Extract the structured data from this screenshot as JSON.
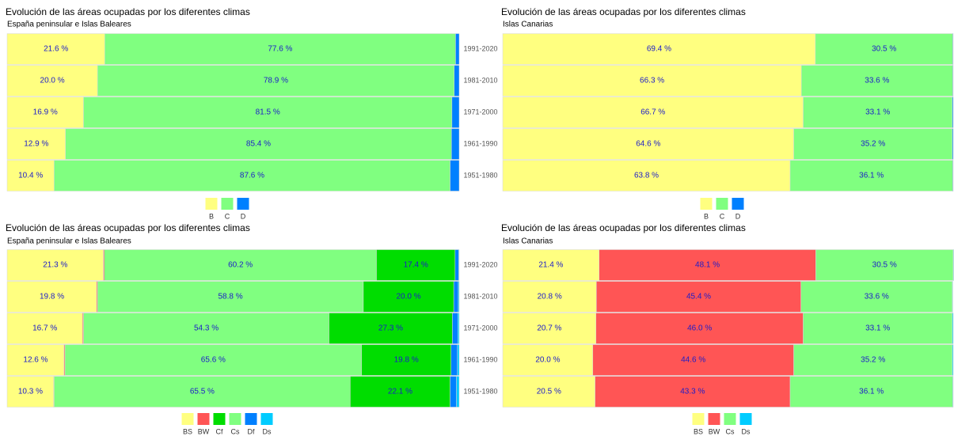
{
  "chart_data": [
    {
      "type": "bar",
      "orientation": "horizontal",
      "stacked": true,
      "title": "Evolución de las áreas ocupadas por los diferentes climas",
      "subtitle": "España peninsular e Islas Baleares",
      "categories": [
        "1991-2020",
        "1981-2010",
        "1971-2000",
        "1961-1990",
        "1951-1980"
      ],
      "xlim": [
        0,
        100
      ],
      "series": [
        {
          "name": "B",
          "color": "#ffff80",
          "values": [
            21.6,
            20.0,
            16.9,
            12.9,
            10.4
          ],
          "value_labels": [
            "21.6 %",
            "20.0 %",
            "16.9 %",
            "12.9 %",
            "10.4 %"
          ]
        },
        {
          "name": "C",
          "color": "#80ff80",
          "values": [
            77.6,
            78.9,
            81.5,
            85.4,
            87.6
          ],
          "value_labels": [
            "77.6 %",
            "78.9 %",
            "81.5 %",
            "85.4 %",
            "87.6 %"
          ]
        },
        {
          "name": "D",
          "color": "#0080ff",
          "values": [
            0.8,
            1.1,
            1.6,
            1.7,
            2.0
          ]
        }
      ]
    },
    {
      "type": "bar",
      "orientation": "horizontal",
      "stacked": true,
      "title": "Evolución de las áreas ocupadas por los diferentes climas",
      "subtitle": "Islas Canarias",
      "xlim": [
        0,
        100
      ],
      "series": [
        {
          "name": "B",
          "color": "#ffff80",
          "values": [
            69.4,
            66.3,
            66.7,
            64.6,
            63.8
          ],
          "value_labels": [
            "69.4 %",
            "66.3 %",
            "66.7 %",
            "64.6 %",
            "63.8 %"
          ]
        },
        {
          "name": "C",
          "color": "#80ff80",
          "values": [
            30.5,
            33.6,
            33.1,
            35.2,
            36.1
          ],
          "value_labels": [
            "30.5 %",
            "33.6 %",
            "33.1 %",
            "35.2 %",
            "36.1 %"
          ]
        },
        {
          "name": "D",
          "color": "#0080ff",
          "values": [
            0.1,
            0.1,
            0.2,
            0.2,
            0.1
          ]
        }
      ]
    },
    {
      "type": "bar",
      "orientation": "horizontal",
      "stacked": true,
      "title": "Evolución de las áreas ocupadas por los diferentes climas",
      "subtitle": "España peninsular e Islas Baleares",
      "categories": [
        "1991-2020",
        "1981-2010",
        "1971-2000",
        "1961-1990",
        "1951-1980"
      ],
      "xlim": [
        0,
        100
      ],
      "series": [
        {
          "name": "BS",
          "color": "#ffff80",
          "values": [
            21.3,
            19.8,
            16.7,
            12.6,
            10.3
          ],
          "value_labels": [
            "21.3 %",
            "19.8 %",
            "16.7 %",
            "12.6 %",
            "10.3 %"
          ]
        },
        {
          "name": "BW",
          "color": "#ff5555",
          "values": [
            0.2,
            0.2,
            0.2,
            0.2,
            0.1
          ]
        },
        {
          "name": "Cs",
          "color": "#80ff80",
          "values": [
            60.2,
            58.8,
            54.3,
            65.6,
            65.5
          ],
          "value_labels": [
            "60.2 %",
            "58.8 %",
            "54.3 %",
            "65.6 %",
            "65.5 %"
          ]
        },
        {
          "name": "Cf",
          "color": "#00dd00",
          "values": [
            17.4,
            20.0,
            27.3,
            19.8,
            22.1
          ],
          "value_labels": [
            "17.4 %",
            "20.0 %",
            "27.3 %",
            "19.8 %",
            "22.1 %"
          ]
        },
        {
          "name": "Df",
          "color": "#0080ff",
          "values": [
            0.8,
            1.0,
            1.2,
            1.4,
            1.4
          ]
        },
        {
          "name": "Ds",
          "color": "#00ccff",
          "values": [
            0.1,
            0.2,
            0.3,
            0.4,
            0.6
          ]
        }
      ]
    },
    {
      "type": "bar",
      "orientation": "horizontal",
      "stacked": true,
      "title": "Evolución de las áreas ocupadas por los diferentes climas",
      "subtitle": "Islas Canarias",
      "xlim": [
        0,
        100
      ],
      "series": [
        {
          "name": "BS",
          "color": "#ffff80",
          "values": [
            21.4,
            20.8,
            20.7,
            20.0,
            20.5
          ],
          "value_labels": [
            "21.4 %",
            "20.8 %",
            "20.7 %",
            "20.0 %",
            "20.5 %"
          ]
        },
        {
          "name": "BW",
          "color": "#ff5555",
          "values": [
            48.1,
            45.4,
            46.0,
            44.6,
            43.3
          ],
          "value_labels": [
            "48.1 %",
            "45.4 %",
            "46.0 %",
            "44.6 %",
            "43.3 %"
          ]
        },
        {
          "name": "Cs",
          "color": "#80ff80",
          "values": [
            30.5,
            33.6,
            33.1,
            35.2,
            36.1
          ],
          "value_labels": [
            "30.5 %",
            "33.6 %",
            "33.1 %",
            "35.2 %",
            "36.1 %"
          ]
        },
        {
          "name": "Ds",
          "color": "#00ccff",
          "values": [
            0.1,
            0.1,
            0.2,
            0.2,
            0.1
          ]
        }
      ]
    }
  ]
}
